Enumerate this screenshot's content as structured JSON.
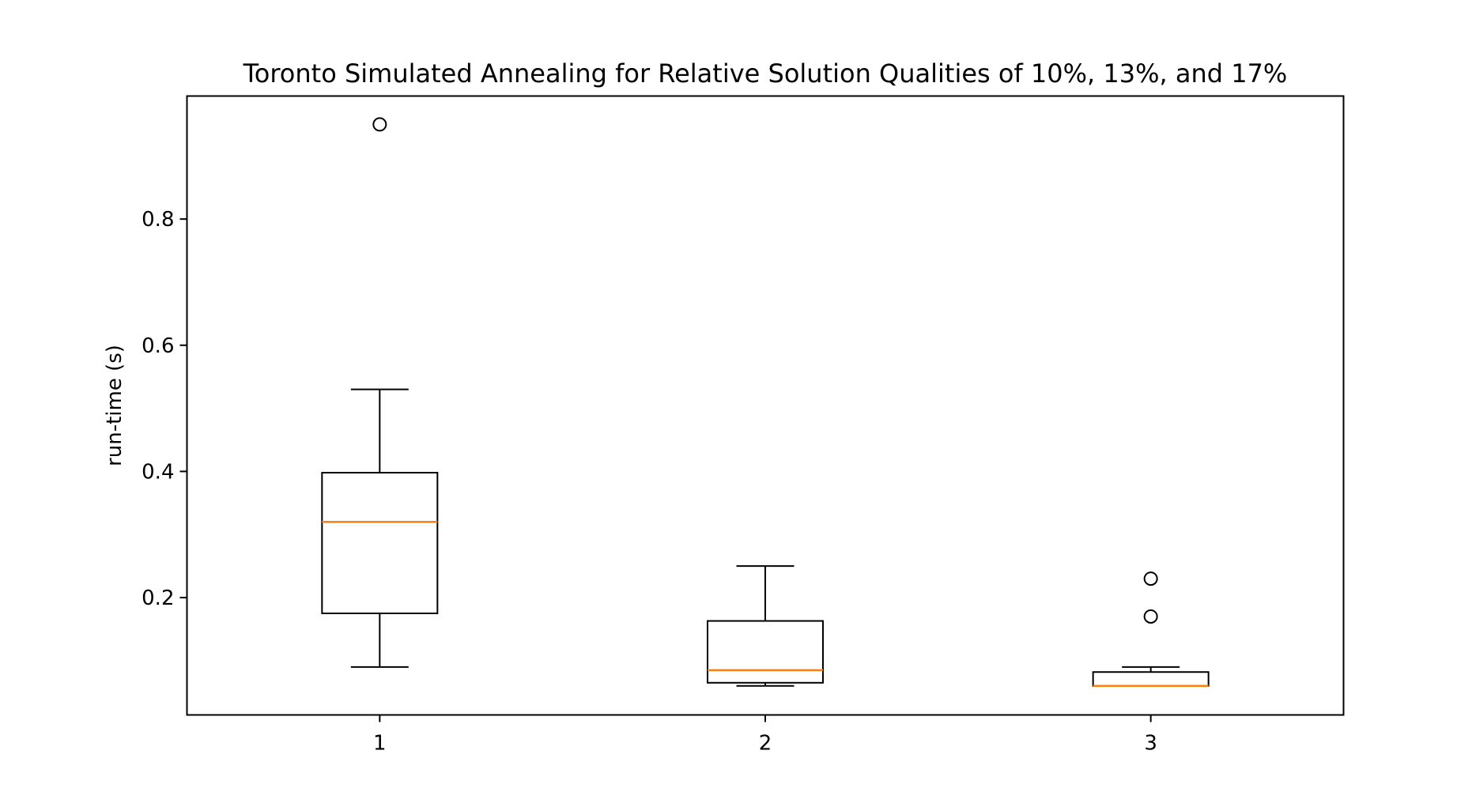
{
  "chart_data": {
    "type": "box",
    "title": "Toronto Simulated Annealing for Relative Solution Qualities of 10%, 13%, and 17%",
    "xlabel": "",
    "ylabel": "run-time (s)",
    "categories": [
      "1",
      "2",
      "3"
    ],
    "yticks": [
      "0.2",
      "0.4",
      "0.6",
      "0.8"
    ],
    "ytick_values": [
      0.2,
      0.4,
      0.6,
      0.8
    ],
    "ylim": [
      0.014,
      0.995
    ],
    "xlim": [
      0.5,
      3.5
    ],
    "grid": false,
    "colors": {
      "box": "#000000",
      "median": "#ff7f0e",
      "flier": "#000000"
    },
    "boxes": [
      {
        "label": "1",
        "whisker_low": 0.09,
        "q1": 0.175,
        "median": 0.32,
        "q3": 0.398,
        "whisker_high": 0.53,
        "fliers": [
          0.95
        ]
      },
      {
        "label": "2",
        "whisker_low": 0.06,
        "q1": 0.065,
        "median": 0.085,
        "q3": 0.163,
        "whisker_high": 0.25,
        "fliers": []
      },
      {
        "label": "3",
        "whisker_low": 0.06,
        "q1": 0.06,
        "median": 0.06,
        "q3": 0.082,
        "whisker_high": 0.09,
        "fliers": [
          0.23,
          0.17
        ]
      }
    ]
  }
}
